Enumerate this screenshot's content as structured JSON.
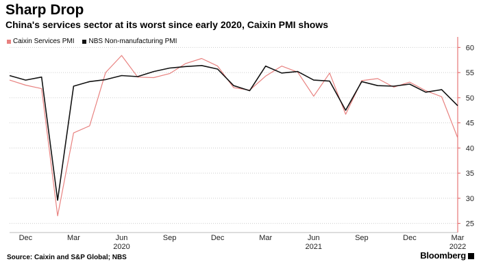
{
  "header": {
    "title": "Sharp Drop",
    "subtitle": "China's services sector at its worst since early 2020, Caixin PMI shows"
  },
  "footer": {
    "source": "Source: Caixin and S&P Global; NBS",
    "brand": "Bloomberg"
  },
  "colors": {
    "caixin": "#e8817f",
    "nbs": "#111111",
    "grid": "#cccccc",
    "axis": "#e05a5a"
  },
  "chart_data": {
    "type": "line",
    "title": "Sharp Drop",
    "subtitle": "China's services sector at its worst since early 2020, Caixin PMI shows",
    "x": [
      "2019-11",
      "2019-12",
      "2020-01",
      "2020-02",
      "2020-03",
      "2020-04",
      "2020-05",
      "2020-06",
      "2020-07",
      "2020-08",
      "2020-09",
      "2020-10",
      "2020-11",
      "2020-12",
      "2021-01",
      "2021-02",
      "2021-03",
      "2021-04",
      "2021-05",
      "2021-06",
      "2021-07",
      "2021-08",
      "2021-09",
      "2021-10",
      "2021-11",
      "2021-12",
      "2022-01",
      "2022-02",
      "2022-03"
    ],
    "series": [
      {
        "name": "Caixin Services PMI",
        "color": "#e8817f",
        "values": [
          53.5,
          52.5,
          51.8,
          26.5,
          43.0,
          44.4,
          55.0,
          58.4,
          54.1,
          54.0,
          54.8,
          56.8,
          57.8,
          56.3,
          52.0,
          51.5,
          54.3,
          56.3,
          55.1,
          50.3,
          54.9,
          46.7,
          53.4,
          53.8,
          52.1,
          53.1,
          51.4,
          50.2,
          42.0
        ]
      },
      {
        "name": "NBS Non-manufacturing PMI",
        "color": "#111111",
        "values": [
          54.4,
          53.5,
          54.1,
          29.6,
          52.3,
          53.2,
          53.6,
          54.4,
          54.2,
          55.2,
          55.9,
          56.2,
          56.4,
          55.7,
          52.4,
          51.4,
          56.3,
          54.9,
          55.2,
          53.5,
          53.3,
          47.5,
          53.2,
          52.4,
          52.3,
          52.7,
          51.1,
          51.6,
          48.4
        ]
      }
    ],
    "x_tick_labels": [
      "Dec",
      "Mar",
      "Jun",
      "Sep",
      "Dec",
      "Mar",
      "Jun",
      "Sep",
      "Dec",
      "Mar"
    ],
    "year_labels": [
      "2020",
      "2021",
      "2022"
    ],
    "y_ticks": [
      25,
      30,
      35,
      40,
      45,
      50,
      55,
      60
    ],
    "ylim": [
      24,
      61
    ],
    "y_axis_side": "right",
    "grid": true,
    "legend_position": "top-left"
  }
}
